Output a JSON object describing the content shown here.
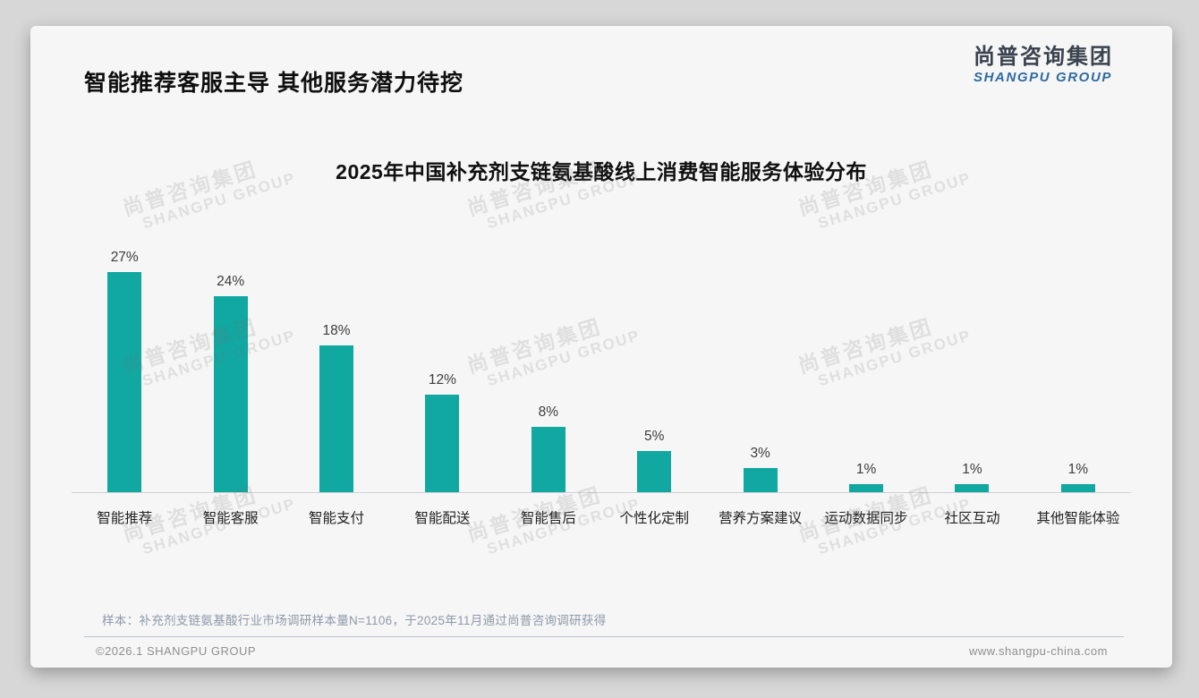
{
  "header": {
    "title": "智能推荐客服主导 其他服务潜力待挖"
  },
  "logo": {
    "cn": "尚普咨询集团",
    "en": "SHANGPU GROUP"
  },
  "watermark": {
    "cn": "尚普咨询集团",
    "en": "SHANGPU GROUP"
  },
  "chart_data": {
    "type": "bar",
    "title": "2025年中国补充剂支链氨基酸线上消费智能服务体验分布",
    "categories": [
      "智能推荐",
      "智能客服",
      "智能支付",
      "智能配送",
      "智能售后",
      "个性化定制",
      "营养方案建议",
      "运动数据同步",
      "社区互动",
      "其他智能体验"
    ],
    "values": [
      27,
      24,
      18,
      12,
      8,
      5,
      3,
      1,
      1,
      1
    ],
    "value_suffix": "%",
    "bar_color": "#11a8a2",
    "xlabel": "",
    "ylabel": "",
    "grid": false,
    "legend": false,
    "data_labels": true
  },
  "footnote": "样本：补充剂支链氨基酸行业市场调研样本量N=1106，于2025年11月通过尚普咨询调研获得",
  "footer": {
    "left": "©2026.1 SHANGPU GROUP",
    "right": "www.shangpu-china.com"
  }
}
